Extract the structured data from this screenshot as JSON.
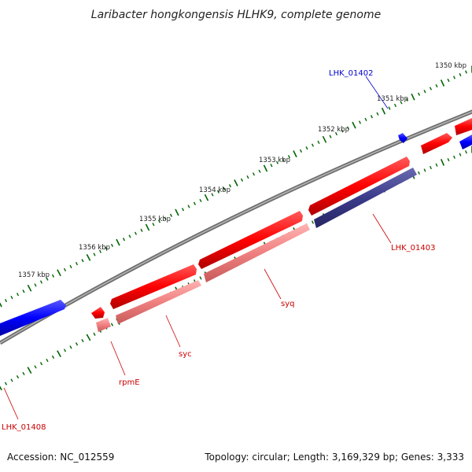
{
  "title": "Laribacter hongkongensis HLHK9, complete genome",
  "scale_unit": "kbp",
  "ticks": [
    "1350",
    "1351",
    "1352",
    "1353",
    "1354",
    "1355",
    "1356",
    "1357"
  ],
  "genes": [
    {
      "label": "LHK_01402",
      "color": "#0000cc"
    },
    {
      "label": "LHK_01403",
      "color": "#cc0000"
    },
    {
      "label": "syq",
      "color": "#cc0000"
    },
    {
      "label": "syc",
      "color": "#cc0000"
    },
    {
      "label": "rpmE",
      "color": "#cc0000"
    },
    {
      "label": "LHK_01408",
      "color": "#cc0000"
    }
  ],
  "colors": {
    "forward_cds": "#ff0000",
    "reverse_cds": "#0000ff",
    "rna_light": "#f08080",
    "other_feature": "#3b3b8a",
    "backbone": "#7f7f7f",
    "ticks": "#006400"
  },
  "footer": {
    "accession": "Accession: NC_012559",
    "summary": "Topology: circular; Length: 3,169,329 bp; Genes: 3,333"
  }
}
